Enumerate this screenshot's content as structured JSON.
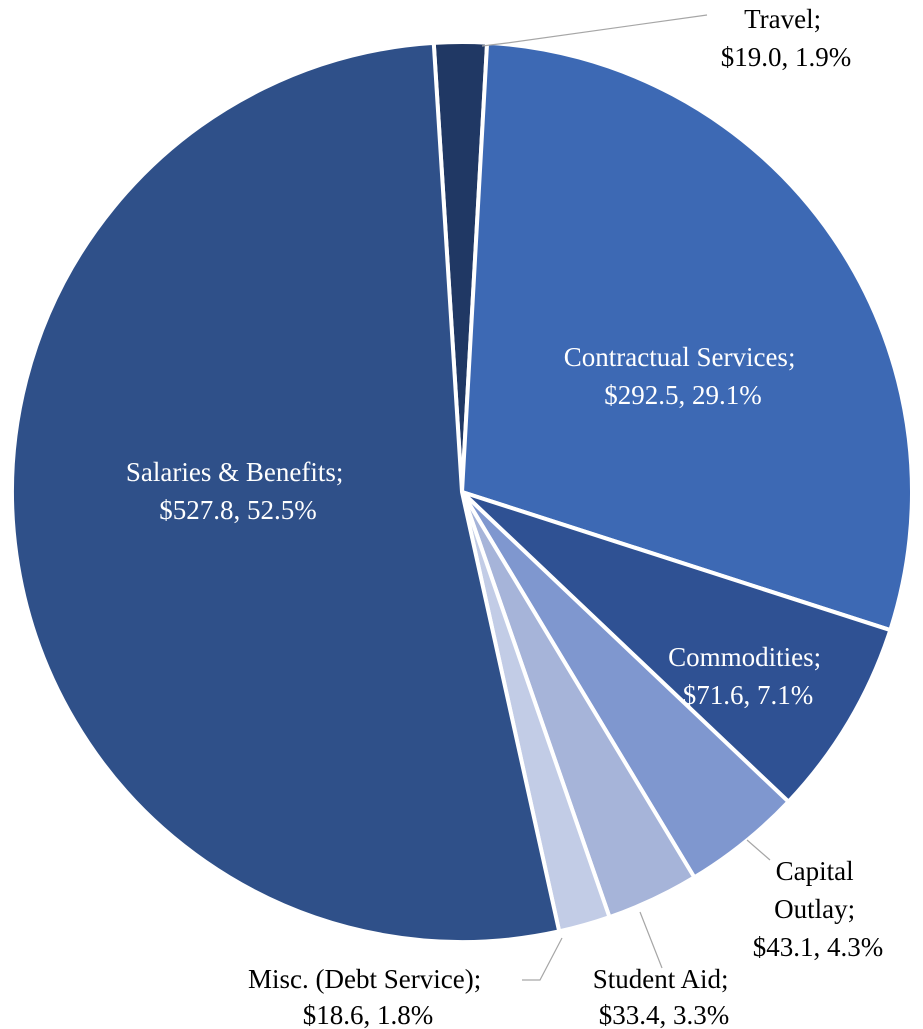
{
  "chart_data": {
    "type": "pie",
    "title": "",
    "start_angle_deg": -3.6,
    "direction": "clockwise",
    "slices": [
      {
        "name": "Travel",
        "value": 19.0,
        "percent": 1.9,
        "value_label": "$19.0, 1.9%",
        "color": "#203864"
      },
      {
        "name": "Contractual Services",
        "value": 292.5,
        "percent": 29.1,
        "value_label": "$292.5, 29.1%",
        "color": "#3d69b4"
      },
      {
        "name": "Commodities",
        "value": 71.6,
        "percent": 7.1,
        "value_label": "$71.6, 7.1%",
        "color": "#2f5193"
      },
      {
        "name": "Capital Outlay",
        "value": 43.1,
        "percent": 4.3,
        "value_label": "$43.1, 4.3%",
        "color": "#7f97cf"
      },
      {
        "name": "Student Aid",
        "value": 33.4,
        "percent": 3.3,
        "value_label": "$33.4, 3.3%",
        "color": "#a6b4d9"
      },
      {
        "name": "Misc. (Debt Service)",
        "value": 18.6,
        "percent": 1.8,
        "value_label": "$18.6, 1.8%",
        "color": "#c2cce6"
      },
      {
        "name": "Salaries & Benefits",
        "value": 527.8,
        "percent": 52.5,
        "value_label": "$527.8, 52.5%",
        "color": "#2f5089"
      }
    ]
  }
}
